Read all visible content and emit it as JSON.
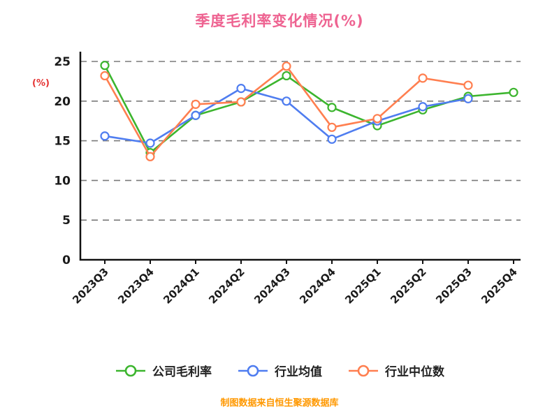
{
  "title": "季度毛利率变化情况(%)",
  "footer": "制图数据来自恒生聚源数据库",
  "chart_data": {
    "type": "line",
    "title": "季度毛利率变化情况(%)",
    "ylabel": "(%)",
    "xlabel": "",
    "ylim": [
      0,
      25
    ],
    "yticks": [
      0,
      5,
      10,
      15,
      20,
      25
    ],
    "grid": "horizontal dashed",
    "legend_position": "bottom",
    "categories": [
      "2023Q3",
      "2023Q4",
      "2024Q1",
      "2024Q2",
      "2024Q3",
      "2024Q4",
      "2025Q1",
      "2025Q2",
      "2025Q3",
      "2025Q4"
    ],
    "series": [
      {
        "name": "公司毛利率",
        "color": "#3cb52e",
        "values": [
          24.5,
          13.5,
          18.2,
          19.9,
          23.2,
          19.2,
          16.9,
          18.9,
          20.6,
          21.1
        ]
      },
      {
        "name": "行业均值",
        "color": "#4f7df0",
        "values": [
          15.6,
          14.7,
          18.2,
          21.6,
          20.0,
          15.2,
          17.5,
          19.3,
          20.3,
          null
        ]
      },
      {
        "name": "行业中位数",
        "color": "#ff7f50",
        "values": [
          23.2,
          13.0,
          19.6,
          19.9,
          24.4,
          16.7,
          17.8,
          22.9,
          22.0,
          null
        ]
      }
    ]
  }
}
